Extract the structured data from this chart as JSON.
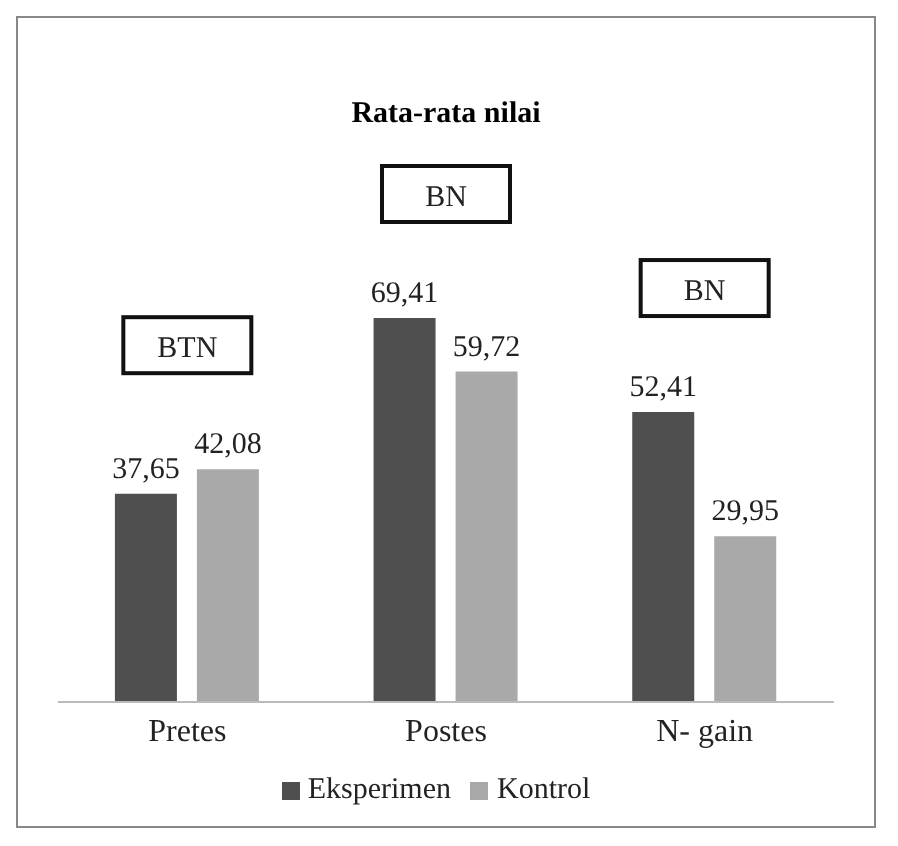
{
  "chart_data": {
    "type": "bar",
    "title": "Rata-rata nilai",
    "categories": [
      "Pretes",
      "Postes",
      "N- gain"
    ],
    "series": [
      {
        "name": "Eksperimen",
        "color": "#4f4f4f",
        "values": [
          37.65,
          69.41,
          52.41
        ],
        "value_labels": [
          "37,65",
          "69,41",
          "52,41"
        ]
      },
      {
        "name": "Kontrol",
        "color": "#a9a9a9",
        "values": [
          42.08,
          59.72,
          29.95
        ],
        "value_labels": [
          "42,08",
          "59,72",
          "29,95"
        ]
      }
    ],
    "annotations": [
      "BTN",
      "BN",
      "BN"
    ],
    "legend": "bottom",
    "grid": false
  }
}
